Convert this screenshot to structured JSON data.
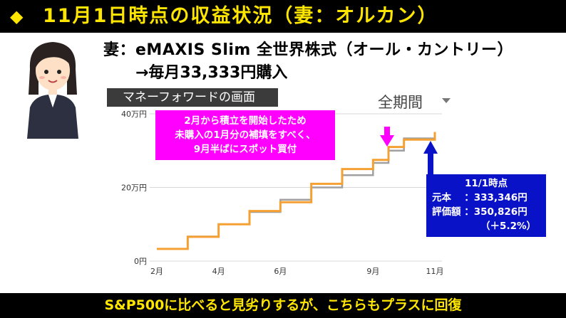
{
  "header": {
    "title": "11月1日時点の収益状況（妻：オルカン）"
  },
  "fund": {
    "name": "妻：eMAXIS Slim 全世界株式（オール・カントリー）",
    "purchase": "→毎月33,333円購入"
  },
  "panel": {
    "label": "マネーフォワードの画面",
    "period": "全期間"
  },
  "callouts": {
    "pink_lines": [
      "2月から積立を開始したため",
      "未購入の1月分の補填をすべく、",
      "9月半ばにスポット買付"
    ],
    "blue_header": "11/1時点",
    "blue_rows": [
      "元本　 ：333,346円",
      "評価額 ：350,826円"
    ],
    "blue_pct": "（＋5.2%）"
  },
  "footer": {
    "text": "S&P500に比べると見劣りするが、こちらもプラスに回復"
  },
  "colors": {
    "header_bg": "#000000",
    "header_text": "#ffe600",
    "series_value": "#f5a033",
    "series_principal": "#a0a0a0",
    "pink": "#ff00ff",
    "blue": "#0a12c8"
  },
  "chart_data": {
    "type": "line",
    "title": "",
    "xlabel": "",
    "ylabel": "",
    "x_ticks": [
      "2月",
      "4月",
      "6月",
      "9月",
      "11月"
    ],
    "y_ticks": [
      "0円",
      "20万円",
      "40万円"
    ],
    "ylim": [
      0,
      400000
    ],
    "grid": true,
    "series": [
      {
        "name": "",
        "values": [
          [
            "2月",
            33333
          ],
          [
            "3月",
            66666
          ],
          [
            "4月",
            99999
          ],
          [
            "5月",
            133332
          ],
          [
            "6月",
            166665
          ],
          [
            "7月",
            199998
          ],
          [
            "8月",
            233331
          ],
          [
            "9月",
            266664
          ],
          [
            "9月半ば",
            299997
          ],
          [
            "10月",
            333346
          ],
          [
            "11月",
            333346
          ]
        ]
      },
      {
        "name": "",
        "values": [
          [
            "2月",
            33000
          ],
          [
            "3月",
            66000
          ],
          [
            "4月",
            100000
          ],
          [
            "5月",
            136000
          ],
          [
            "6月",
            160000
          ],
          [
            "7月",
            210000
          ],
          [
            "8月",
            250000
          ],
          [
            "9月",
            275000
          ],
          [
            "9月半ば",
            310000
          ],
          [
            "10月",
            330000
          ],
          [
            "11月",
            350826
          ]
        ]
      }
    ]
  }
}
